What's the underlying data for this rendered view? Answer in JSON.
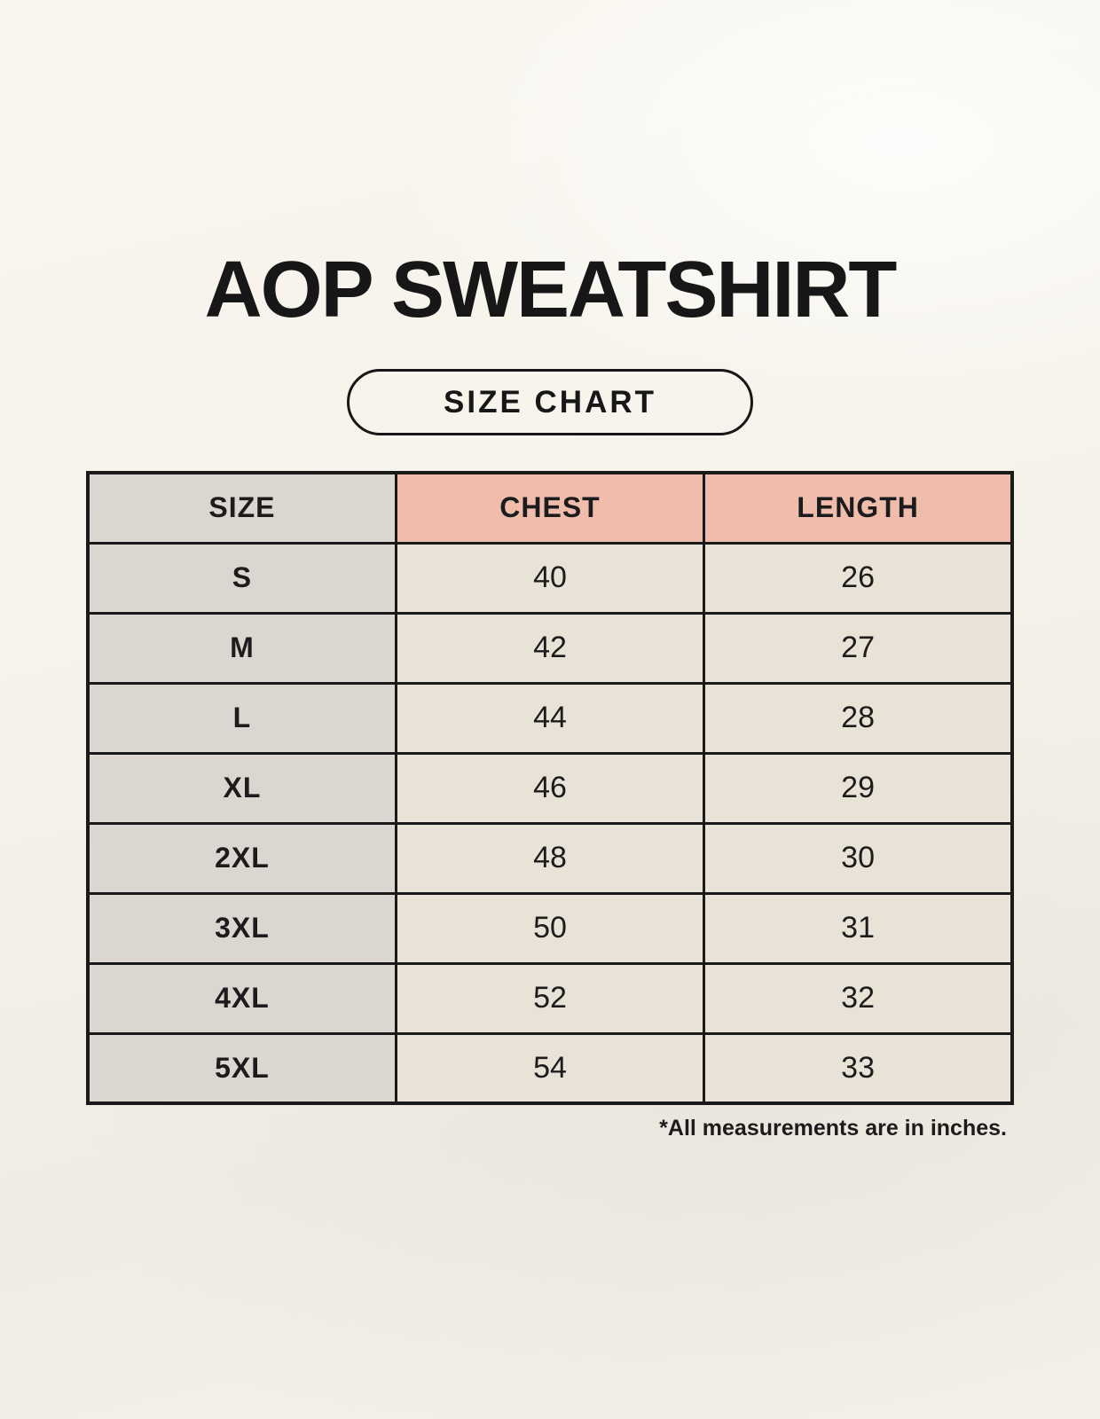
{
  "title": "AOP SWEATSHIRT",
  "badge_label": "SIZE CHART",
  "footnote": "*All measurements are in inches.",
  "colors": {
    "page_background": "#f6f2ea",
    "table_border": "#1a1a1a",
    "size_column_bg": "#dcd6d0",
    "accent_header_bg": "#f0bcab",
    "data_cell_bg": "#e9e3d7",
    "text": "#1c1c1c"
  },
  "chart_data": {
    "type": "table",
    "title": "AOP SWEATSHIRT",
    "subtitle": "SIZE CHART",
    "units": "inches",
    "columns": [
      "SIZE",
      "CHEST",
      "LENGTH"
    ],
    "rows": [
      {
        "size": "S",
        "chest": 40,
        "length": 26
      },
      {
        "size": "M",
        "chest": 42,
        "length": 27
      },
      {
        "size": "L",
        "chest": 44,
        "length": 28
      },
      {
        "size": "XL",
        "chest": 46,
        "length": 29
      },
      {
        "size": "2XL",
        "chest": 48,
        "length": 30
      },
      {
        "size": "3XL",
        "chest": 50,
        "length": 31
      },
      {
        "size": "4XL",
        "chest": 52,
        "length": 32
      },
      {
        "size": "5XL",
        "chest": 54,
        "length": 33
      }
    ]
  }
}
